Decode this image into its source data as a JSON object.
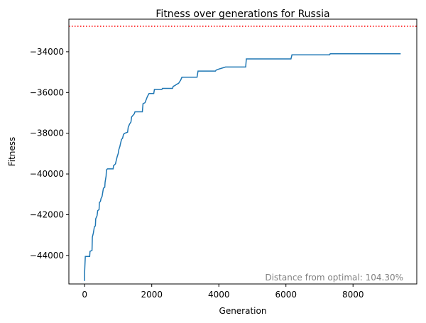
{
  "chart_data": {
    "type": "line",
    "title": "Fitness over generations for Russia",
    "xlabel": "Generation",
    "ylabel": "Fitness",
    "xlim": [
      -470,
      9900
    ],
    "ylim": [
      -45400,
      -32400
    ],
    "x_ticks": [
      0,
      2000,
      4000,
      6000,
      8000
    ],
    "y_ticks": [
      -44000,
      -42000,
      -40000,
      -38000,
      -36000,
      -34000
    ],
    "x_tick_labels": [
      "0",
      "2000",
      "4000",
      "6000",
      "8000"
    ],
    "y_tick_labels": [
      "−44000",
      "−42000",
      "−40000",
      "−38000",
      "−36000",
      "−34000"
    ],
    "grid": false,
    "reference_line": {
      "y": -32750,
      "style": "dotted",
      "color": "#ff0000"
    },
    "annotation": "Distance from optimal: 104.30%",
    "series": [
      {
        "color": "#1f77b4",
        "step": true,
        "points": [
          [
            0,
            -45250
          ],
          [
            0,
            -44800
          ],
          [
            20,
            -44050
          ],
          [
            150,
            -44050
          ],
          [
            160,
            -43800
          ],
          [
            220,
            -43750
          ],
          [
            230,
            -43100
          ],
          [
            260,
            -42900
          ],
          [
            290,
            -42600
          ],
          [
            320,
            -42550
          ],
          [
            330,
            -42200
          ],
          [
            370,
            -42050
          ],
          [
            390,
            -41800
          ],
          [
            430,
            -41750
          ],
          [
            440,
            -41400
          ],
          [
            470,
            -41350
          ],
          [
            490,
            -41200
          ],
          [
            520,
            -41100
          ],
          [
            540,
            -40900
          ],
          [
            560,
            -40700
          ],
          [
            600,
            -40650
          ],
          [
            610,
            -40400
          ],
          [
            640,
            -40100
          ],
          [
            650,
            -39800
          ],
          [
            680,
            -39750
          ],
          [
            850,
            -39750
          ],
          [
            860,
            -39600
          ],
          [
            920,
            -39500
          ],
          [
            940,
            -39350
          ],
          [
            970,
            -39150
          ],
          [
            1000,
            -39000
          ],
          [
            1020,
            -38800
          ],
          [
            1050,
            -38650
          ],
          [
            1070,
            -38500
          ],
          [
            1100,
            -38300
          ],
          [
            1130,
            -38250
          ],
          [
            1160,
            -38050
          ],
          [
            1200,
            -38000
          ],
          [
            1280,
            -37950
          ],
          [
            1300,
            -37700
          ],
          [
            1340,
            -37550
          ],
          [
            1380,
            -37450
          ],
          [
            1400,
            -37200
          ],
          [
            1480,
            -37050
          ],
          [
            1500,
            -36950
          ],
          [
            1720,
            -36950
          ],
          [
            1740,
            -36550
          ],
          [
            1800,
            -36500
          ],
          [
            1870,
            -36200
          ],
          [
            1920,
            -36050
          ],
          [
            2060,
            -36050
          ],
          [
            2080,
            -35850
          ],
          [
            2300,
            -35850
          ],
          [
            2320,
            -35800
          ],
          [
            2620,
            -35800
          ],
          [
            2640,
            -35700
          ],
          [
            2700,
            -35650
          ],
          [
            2740,
            -35600
          ],
          [
            2800,
            -35550
          ],
          [
            2840,
            -35450
          ],
          [
            2860,
            -35400
          ],
          [
            2900,
            -35250
          ],
          [
            3350,
            -35250
          ],
          [
            3380,
            -34950
          ],
          [
            3900,
            -34950
          ],
          [
            3920,
            -34900
          ],
          [
            4000,
            -34850
          ],
          [
            4100,
            -34800
          ],
          [
            4200,
            -34750
          ],
          [
            4800,
            -34750
          ],
          [
            4820,
            -34350
          ],
          [
            6150,
            -34350
          ],
          [
            6180,
            -34150
          ],
          [
            7300,
            -34150
          ],
          [
            7320,
            -34100
          ],
          [
            8900,
            -34100
          ],
          [
            8950,
            -34100
          ],
          [
            9420,
            -34100
          ]
        ]
      }
    ]
  }
}
